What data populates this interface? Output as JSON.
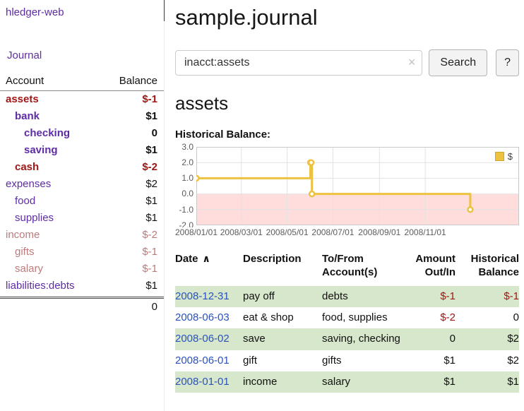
{
  "colors": {
    "accent_purple": "#5e2ca5",
    "negative_red": "#a01616",
    "negative_faded": "#bb7b7b",
    "link_blue": "#2a52be",
    "row_green": "#d7e7cb",
    "series_yellow": "#edc240",
    "negative_region_pink": "#ffdddd"
  },
  "sidebar": {
    "app_title": "hledger-web",
    "journal_link": "Journal",
    "accounts": {
      "col_account": "Account",
      "col_balance": "Balance",
      "rows": [
        {
          "name": "assets",
          "balance": "$-1",
          "level": 0,
          "bold": true,
          "negative": true
        },
        {
          "name": "bank",
          "balance": "$1",
          "level": 1,
          "bold": true,
          "negative": false
        },
        {
          "name": "checking",
          "balance": "0",
          "level": 2,
          "bold": true,
          "negative": false
        },
        {
          "name": "saving",
          "balance": "$1",
          "level": 2,
          "bold": true,
          "negative": false
        },
        {
          "name": "cash",
          "balance": "$-2",
          "level": 1,
          "bold": true,
          "negative": true
        },
        {
          "name": "expenses",
          "balance": "$2",
          "level": 0,
          "bold": false,
          "negative": false
        },
        {
          "name": "food",
          "balance": "$1",
          "level": 1,
          "bold": false,
          "negative": false
        },
        {
          "name": "supplies",
          "balance": "$1",
          "level": 1,
          "bold": false,
          "negative": false
        },
        {
          "name": "income",
          "balance": "$-2",
          "level": 0,
          "bold": false,
          "negative": true
        },
        {
          "name": "gifts",
          "balance": "$-1",
          "level": 1,
          "bold": false,
          "negative": true
        },
        {
          "name": "salary",
          "balance": "$-1",
          "level": 1,
          "bold": false,
          "negative": true
        },
        {
          "name": "liabilities:debts",
          "balance": "$1",
          "level": 0,
          "bold": false,
          "negative": false
        }
      ],
      "total": "0"
    }
  },
  "main": {
    "title": "sample.journal",
    "search": {
      "value": "inacct:assets",
      "clear": "×",
      "button_label": "Search",
      "help_label": "?"
    },
    "account_heading": "assets",
    "chart_title": "Historical Balance:"
  },
  "chart_data": {
    "type": "line",
    "step": true,
    "title": "Historical Balance",
    "series": [
      {
        "name": "$",
        "color": "#edc240",
        "points": [
          [
            "2008-01-01",
            1
          ],
          [
            "2008-06-01",
            2
          ],
          [
            "2008-06-02",
            2
          ],
          [
            "2008-06-03",
            0
          ],
          [
            "2008-12-31",
            -1
          ]
        ]
      }
    ],
    "ylim": [
      -2,
      3
    ],
    "yticks": [
      3,
      2,
      1,
      0,
      -1,
      -2
    ],
    "ytick_labels": [
      "3.0",
      "2.0",
      "1.0",
      "0.0",
      "-1.0",
      "-2.0"
    ],
    "xtick_labels": [
      "2008/01/01",
      "2008/03/01",
      "2008/05/01",
      "2008/07/01",
      "2008/09/01",
      "2008/11/01"
    ],
    "x_domain": [
      "2008-01-01",
      "2009-03-06"
    ],
    "legend": {
      "label": "$",
      "position": "top-right"
    },
    "negative_region_color": "#ffdddd",
    "grid": true
  },
  "transactions": {
    "headers": {
      "date": "Date",
      "sort_indicator": "∧",
      "description": "Description",
      "accounts": "To/From Account(s)",
      "amount": "Amount Out/In",
      "balance": "Historical Balance"
    },
    "rows": [
      {
        "date": "2008-12-31",
        "description": "pay off",
        "accounts": "debts",
        "amount": "$-1",
        "amount_negative": true,
        "balance": "$-1",
        "balance_negative": true
      },
      {
        "date": "2008-06-03",
        "description": "eat & shop",
        "accounts": "food, supplies",
        "amount": "$-2",
        "amount_negative": true,
        "balance": "0",
        "balance_negative": false
      },
      {
        "date": "2008-06-02",
        "description": "save",
        "accounts": "saving, checking",
        "amount": "0",
        "amount_negative": false,
        "balance": "$2",
        "balance_negative": false
      },
      {
        "date": "2008-06-01",
        "description": "gift",
        "accounts": "gifts",
        "amount": "$1",
        "amount_negative": false,
        "balance": "$2",
        "balance_negative": false
      },
      {
        "date": "2008-01-01",
        "description": "income",
        "accounts": "salary",
        "amount": "$1",
        "amount_negative": false,
        "balance": "$1",
        "balance_negative": false
      }
    ]
  }
}
